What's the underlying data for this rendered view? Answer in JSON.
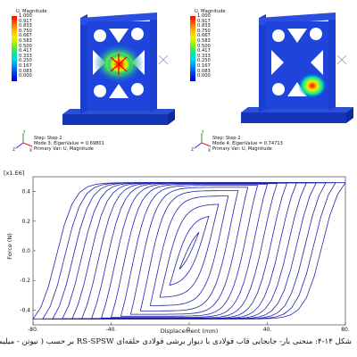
{
  "figure_caption": "شکل ۱۴-۴: منحنی بار- جابجایی قاب فولادی با دیوار برشی فولادی حلقه‌ای RS-SPSW بر حسب ( نیوتن - میلیمتر)",
  "contour_legend": {
    "title": "U, Magnitude",
    "values": [
      "1.000",
      "0.917",
      "0.833",
      "0.750",
      "0.667",
      "0.583",
      "0.500",
      "0.417",
      "0.333",
      "0.250",
      "0.167",
      "0.083",
      "0.000"
    ],
    "colors": [
      "#ff0000",
      "#ff4a00",
      "#ff8a00",
      "#ffc400",
      "#f0f000",
      "#a8f000",
      "#4ce84c",
      "#00e8a0",
      "#00d8e8",
      "#009cf0",
      "#0060f0",
      "#0024e0",
      "#0000c8"
    ]
  },
  "panels": [
    {
      "step_line": "Step: Step-2",
      "mode_line": "Mode     3: EigenValue = 0.69801",
      "var_line": "Primary Var: U, Magnitude",
      "hot_spot": "center"
    },
    {
      "step_line": "Step: Step-2",
      "mode_line": "Mode     4: EigenValue = 0.74713",
      "var_line": "Primary Var: U, Magnitude",
      "hot_spot": "right"
    }
  ],
  "triad_labels": {
    "x": "X",
    "y": "Y",
    "z": "Z"
  },
  "chart_data": {
    "type": "line",
    "title": "",
    "scale_factor_label": "[x1.E6]",
    "xlabel": "Displacement (mm)",
    "ylabel": "Force (N)",
    "xlim": [
      -80,
      80
    ],
    "ylim": [
      -0.5,
      0.5
    ],
    "x_ticks": [
      -80,
      -40,
      0,
      40,
      80
    ],
    "x_tick_labels": [
      "-80.",
      "-40.",
      "0.",
      "40.",
      "80."
    ],
    "y_ticks": [
      -0.4,
      -0.2,
      0.0,
      0.2,
      0.4
    ],
    "y_tick_labels": [
      "-0.4",
      "-0.2",
      "0.0",
      "0.2",
      "0.4"
    ],
    "grid": false,
    "color": "#2222aa",
    "hysteresis_loops_amplitude_mm": [
      5,
      10,
      15,
      20,
      25,
      30,
      35,
      40,
      45,
      50,
      55,
      60,
      65,
      70,
      75,
      80
    ],
    "peak_force": 0.46
  }
}
